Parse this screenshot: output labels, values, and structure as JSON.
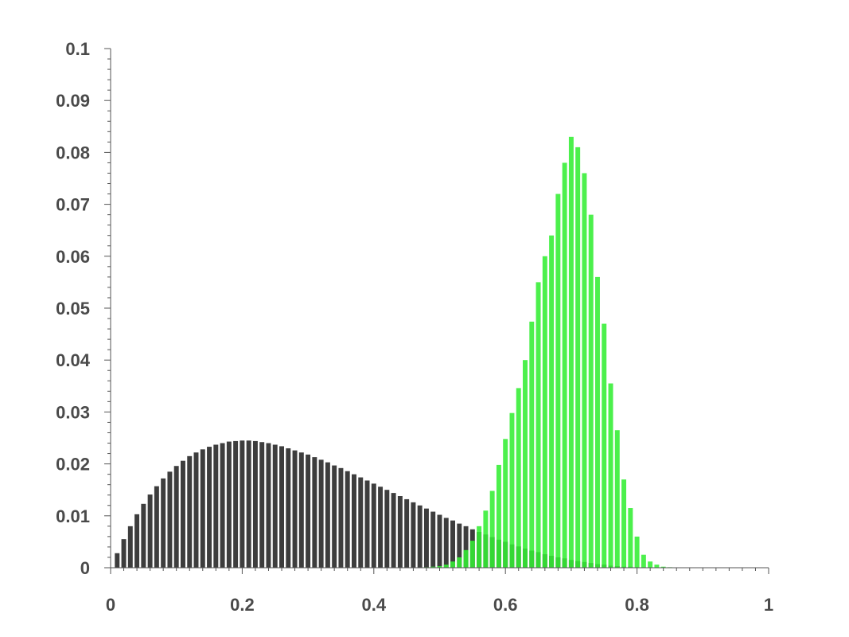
{
  "chart_data": {
    "type": "bar",
    "title": "",
    "xlabel": "",
    "ylabel": "",
    "xlim": [
      0,
      1
    ],
    "ylim": [
      0,
      0.1
    ],
    "grid": false,
    "legend": "none",
    "x_ticks": [
      0,
      0.2,
      0.4,
      0.6,
      0.8,
      1
    ],
    "x_tick_labels": [
      "0",
      "0.2",
      "0.4",
      "0.6",
      "0.8",
      "1"
    ],
    "y_ticks": [
      0,
      0.01,
      0.02,
      0.03,
      0.04,
      0.05,
      0.06,
      0.07,
      0.08,
      0.09,
      0.1
    ],
    "y_tick_labels": [
      "0",
      "0.01",
      "0.02",
      "0.03",
      "0.04",
      "0.05",
      "0.06",
      "0.07",
      "0.08",
      "0.09",
      "0.1"
    ],
    "bin_width": 0.01,
    "x": [
      0.01,
      0.02,
      0.03,
      0.04,
      0.05,
      0.06,
      0.07,
      0.08,
      0.09,
      0.1,
      0.11,
      0.12,
      0.13,
      0.14,
      0.15,
      0.16,
      0.17,
      0.18,
      0.19,
      0.2,
      0.21,
      0.22,
      0.23,
      0.24,
      0.25,
      0.26,
      0.27,
      0.28,
      0.29,
      0.3,
      0.31,
      0.32,
      0.33,
      0.34,
      0.35,
      0.36,
      0.37,
      0.38,
      0.39,
      0.4,
      0.41,
      0.42,
      0.43,
      0.44,
      0.45,
      0.46,
      0.47,
      0.48,
      0.49,
      0.5,
      0.51,
      0.52,
      0.53,
      0.54,
      0.55,
      0.56,
      0.57,
      0.58,
      0.59,
      0.6,
      0.61,
      0.62,
      0.63,
      0.64,
      0.65,
      0.66,
      0.67,
      0.68,
      0.69,
      0.7,
      0.71,
      0.72,
      0.73,
      0.74,
      0.75,
      0.76,
      0.77,
      0.78,
      0.79,
      0.8,
      0.81,
      0.82,
      0.83,
      0.84,
      0.85
    ],
    "series": [
      {
        "color": "#3d3d3d",
        "values": [
          0.0028,
          0.0055,
          0.008,
          0.0103,
          0.0123,
          0.0141,
          0.0157,
          0.0172,
          0.0185,
          0.0196,
          0.0206,
          0.0215,
          0.0222,
          0.0228,
          0.0233,
          0.0237,
          0.024,
          0.0243,
          0.0244,
          0.0245,
          0.0245,
          0.0244,
          0.0242,
          0.024,
          0.0237,
          0.0234,
          0.023,
          0.0226,
          0.0222,
          0.0218,
          0.0213,
          0.0208,
          0.0203,
          0.0197,
          0.0192,
          0.0186,
          0.018,
          0.0174,
          0.0168,
          0.0162,
          0.0156,
          0.015,
          0.0144,
          0.0138,
          0.0132,
          0.0126,
          0.012,
          0.0114,
          0.0108,
          0.0102,
          0.0096,
          0.0091,
          0.0085,
          0.008,
          0.0074,
          0.0069,
          0.0064,
          0.0059,
          0.0054,
          0.005,
          0.0045,
          0.0041,
          0.0037,
          0.0033,
          0.003,
          0.0026,
          0.0023,
          0.002,
          0.0018,
          0.0015,
          0.0013,
          0.0011,
          0.0009,
          0.0007,
          0.0006,
          0.0004,
          0.0003,
          0.0002,
          0.0002,
          0.0001,
          0.0001,
          0.0001,
          0.0,
          0.0,
          0.0
        ]
      },
      {
        "color": "#33ee33",
        "values": [
          0,
          0,
          0,
          0,
          0,
          0,
          0,
          0,
          0,
          0,
          0,
          0,
          0,
          0,
          0,
          0,
          0,
          0,
          0,
          0,
          0,
          0,
          0,
          0,
          0,
          0,
          0,
          0,
          0,
          0,
          0,
          0,
          0,
          0,
          0,
          0,
          0,
          0,
          0,
          0,
          0,
          0,
          0,
          0,
          0,
          0,
          0,
          0.0001,
          0.0002,
          0.0003,
          0.0006,
          0.0012,
          0.002,
          0.0034,
          0.0052,
          0.008,
          0.011,
          0.0148,
          0.0198,
          0.0248,
          0.0298,
          0.0346,
          0.04,
          0.0474,
          0.055,
          0.06,
          0.064,
          0.072,
          0.078,
          0.083,
          0.081,
          0.076,
          0.068,
          0.056,
          0.047,
          0.0355,
          0.0265,
          0.017,
          0.0115,
          0.006,
          0.0025,
          0.0012,
          0.0006,
          0.0002,
          0.0001
        ]
      }
    ]
  }
}
